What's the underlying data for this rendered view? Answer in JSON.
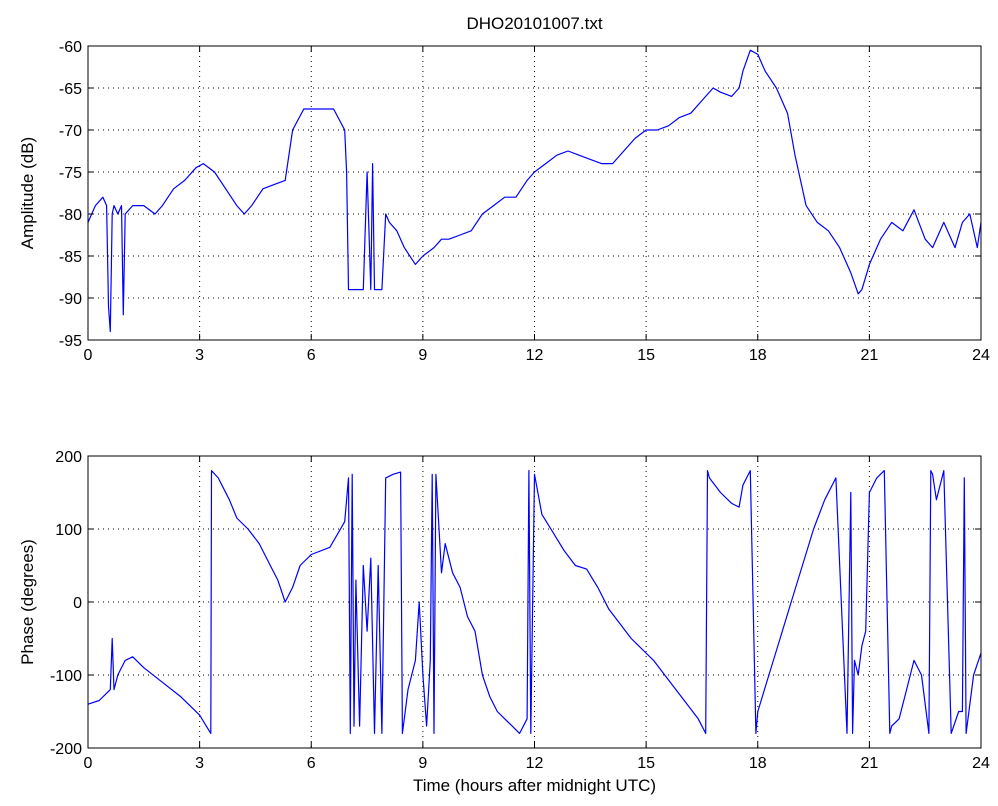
{
  "chart_data": [
    {
      "type": "line",
      "title": "DHO20101007.txt",
      "xlabel": "",
      "ylabel": "Amplitude (dB)",
      "xlim": [
        0,
        24
      ],
      "ylim": [
        -95,
        -60
      ],
      "x_ticks": [
        "0",
        "3",
        "6",
        "9",
        "12",
        "15",
        "18",
        "21",
        "24"
      ],
      "y_ticks": [
        "-95",
        "-90",
        "-85",
        "-80",
        "-75",
        "-70",
        "-65",
        "-60"
      ],
      "grid": true,
      "color": "#0000ff",
      "series": [
        {
          "x": [
            0,
            0.2,
            0.4,
            0.5,
            0.55,
            0.6,
            0.65,
            0.7,
            0.8,
            0.9,
            0.95,
            1.0,
            1.2,
            1.5,
            1.8,
            2.0,
            2.3,
            2.6,
            2.9,
            3.1,
            3.4,
            3.7,
            4.0,
            4.2,
            4.4,
            4.7,
            5.0,
            5.3,
            5.5,
            5.8,
            6.0,
            6.3,
            6.6,
            6.9,
            6.95,
            7.0,
            7.2,
            7.4,
            7.5,
            7.6,
            7.65,
            7.7,
            7.8,
            7.9,
            8.0,
            8.1,
            8.3,
            8.5,
            8.8,
            9.0,
            9.3,
            9.5,
            9.7,
            10.0,
            10.3,
            10.6,
            10.9,
            11.2,
            11.5,
            11.8,
            12.0,
            12.3,
            12.6,
            12.9,
            13.2,
            13.5,
            13.8,
            14.1,
            14.4,
            14.7,
            15.0,
            15.3,
            15.6,
            15.9,
            16.2,
            16.5,
            16.8,
            17.0,
            17.3,
            17.5,
            17.6,
            17.8,
            18.0,
            18.2,
            18.5,
            18.8,
            19.0,
            19.3,
            19.6,
            19.9,
            20.2,
            20.5,
            20.7,
            20.8,
            21.0,
            21.3,
            21.6,
            21.9,
            22.2,
            22.5,
            22.7,
            23.0,
            23.3,
            23.5,
            23.7,
            23.9,
            24.0
          ],
          "y": [
            -81,
            -79,
            -78,
            -79,
            -91,
            -94,
            -80,
            -79,
            -80,
            -79,
            -92,
            -80,
            -79,
            -79,
            -80,
            -79,
            -77,
            -76,
            -74.5,
            -74,
            -75,
            -77,
            -79,
            -80,
            -79,
            -77,
            -76.5,
            -76,
            -70,
            -67.5,
            -67.5,
            -67.5,
            -67.5,
            -70,
            -75,
            -89,
            -89,
            -89,
            -75,
            -89,
            -74,
            -89,
            -89,
            -89,
            -80,
            -81,
            -82,
            -84,
            -86,
            -85,
            -84,
            -83,
            -83,
            -82.5,
            -82,
            -80,
            -79,
            -78,
            -78,
            -76,
            -75,
            -74,
            -73,
            -72.5,
            -73,
            -73.5,
            -74,
            -74,
            -72.5,
            -71,
            -70,
            -70,
            -69.5,
            -68.5,
            -68,
            -66.5,
            -65,
            -65.5,
            -66,
            -65,
            -63,
            -60.5,
            -61,
            -63,
            -65,
            -68,
            -73,
            -79,
            -81,
            -82,
            -84,
            -87,
            -89.5,
            -89,
            -86,
            -83,
            -81,
            -82,
            -79.5,
            -83,
            -84,
            -81,
            -84,
            -81,
            -80,
            -84,
            -81
          ]
        }
      ]
    },
    {
      "type": "line",
      "title": "",
      "xlabel": "Time (hours after midnight UTC)",
      "ylabel": "Phase (degrees)",
      "xlim": [
        0,
        24
      ],
      "ylim": [
        -200,
        200
      ],
      "x_ticks": [
        "0",
        "3",
        "6",
        "9",
        "12",
        "15",
        "18",
        "21",
        "24"
      ],
      "y_ticks": [
        "-200",
        "-100",
        "0",
        "100",
        "200"
      ],
      "grid": true,
      "color": "#0000ff",
      "series": [
        {
          "x": [
            0,
            0.3,
            0.6,
            0.65,
            0.7,
            0.8,
            1.0,
            1.2,
            1.5,
            2.0,
            2.5,
            3.0,
            3.3,
            3.32,
            3.5,
            3.8,
            4.0,
            4.3,
            4.6,
            4.9,
            5.1,
            5.3,
            5.5,
            5.7,
            6.0,
            6.5,
            6.9,
            7.0,
            7.05,
            7.1,
            7.15,
            7.2,
            7.3,
            7.4,
            7.5,
            7.6,
            7.7,
            7.8,
            7.9,
            8.0,
            8.2,
            8.4,
            8.45,
            8.5,
            8.6,
            8.7,
            8.8,
            8.9,
            9.0,
            9.1,
            9.2,
            9.25,
            9.3,
            9.35,
            9.4,
            9.5,
            9.6,
            9.8,
            10.0,
            10.2,
            10.4,
            10.6,
            10.8,
            11.0,
            11.2,
            11.4,
            11.6,
            11.8,
            11.85,
            11.9,
            12.0,
            12.2,
            12.5,
            12.8,
            13.1,
            13.4,
            13.7,
            14.0,
            14.3,
            14.6,
            14.9,
            15.2,
            15.5,
            15.8,
            16.1,
            16.4,
            16.6,
            16.65,
            16.7,
            17.0,
            17.3,
            17.5,
            17.6,
            17.8,
            17.95,
            18.0,
            18.3,
            18.6,
            18.9,
            19.2,
            19.5,
            19.8,
            20.1,
            20.4,
            20.5,
            20.55,
            20.6,
            20.7,
            20.8,
            20.9,
            21.0,
            21.2,
            21.4,
            21.55,
            21.6,
            21.8,
            22.0,
            22.2,
            22.4,
            22.6,
            22.65,
            22.7,
            22.8,
            23.0,
            23.2,
            23.4,
            23.5,
            23.55,
            23.6,
            23.8,
            24.0
          ],
          "y": [
            -140,
            -135,
            -120,
            -50,
            -120,
            -100,
            -80,
            -75,
            -90,
            -110,
            -130,
            -155,
            -180,
            180,
            170,
            140,
            115,
            100,
            80,
            50,
            30,
            0,
            20,
            50,
            65,
            75,
            110,
            170,
            -180,
            175,
            -170,
            30,
            -170,
            50,
            -40,
            60,
            -180,
            50,
            -180,
            170,
            175,
            178,
            -180,
            -160,
            -120,
            -100,
            -80,
            0,
            -100,
            -170,
            -80,
            175,
            -180,
            175,
            130,
            40,
            80,
            40,
            20,
            -20,
            -40,
            -100,
            -130,
            -150,
            -160,
            -170,
            -180,
            -160,
            180,
            -180,
            175,
            120,
            95,
            70,
            50,
            45,
            20,
            -10,
            -30,
            -50,
            -65,
            -80,
            -100,
            -120,
            -140,
            -160,
            -180,
            180,
            170,
            150,
            135,
            130,
            160,
            180,
            -180,
            -150,
            -100,
            -50,
            0,
            50,
            100,
            140,
            170,
            -180,
            150,
            -180,
            -80,
            -100,
            -60,
            -40,
            150,
            170,
            180,
            -180,
            -170,
            -160,
            -120,
            -80,
            -100,
            -180,
            180,
            175,
            140,
            180,
            -180,
            -150,
            -150,
            170,
            -180,
            -100,
            -70
          ]
        }
      ]
    }
  ]
}
